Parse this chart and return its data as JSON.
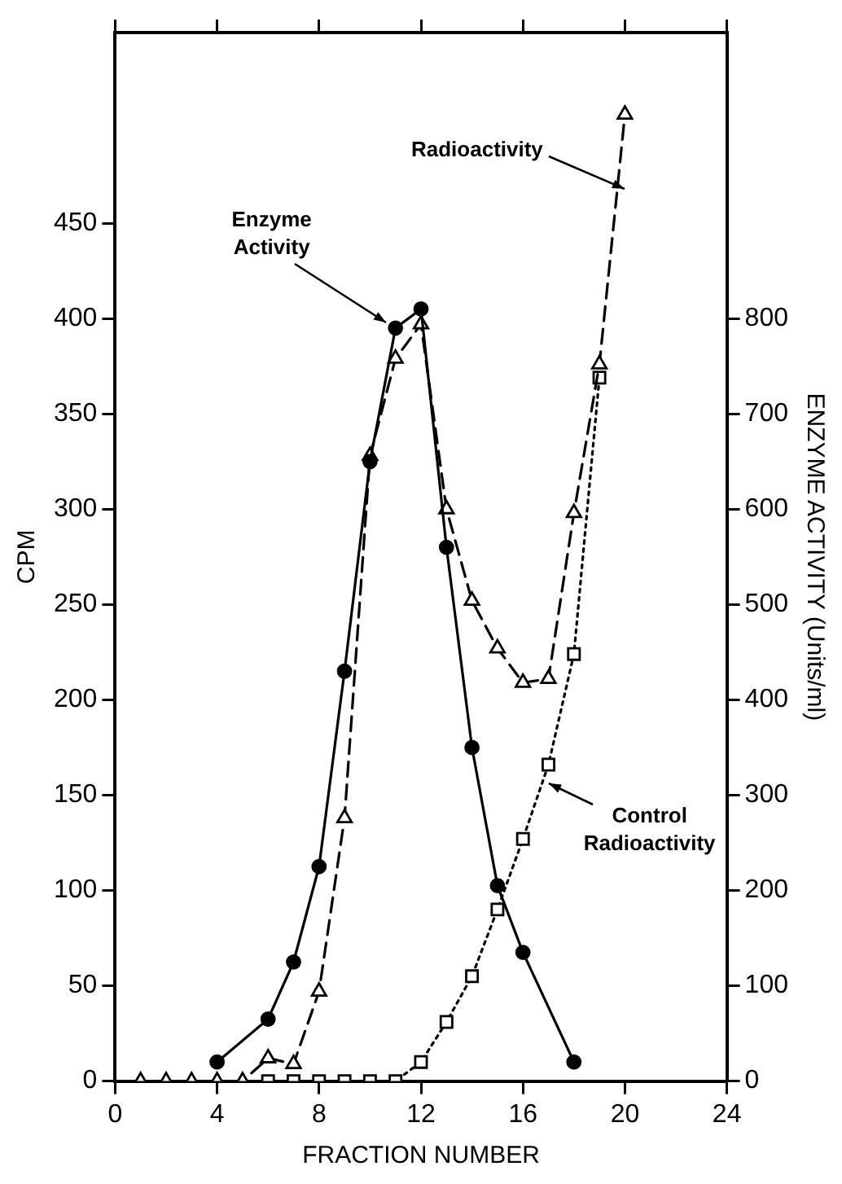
{
  "chart_data": {
    "type": "line",
    "xlabel": "FRACTION NUMBER",
    "ylabel": "CPM",
    "y2label": "ENZYME ACTIVITY (Units/ml)",
    "xlim": [
      0,
      24
    ],
    "xticks": [
      0,
      4,
      8,
      12,
      16,
      20,
      24
    ],
    "ylim": [
      0,
      550
    ],
    "yticks": [
      0,
      50,
      100,
      150,
      200,
      250,
      300,
      350,
      400,
      450
    ],
    "y2lim": [
      0,
      1100
    ],
    "y2ticks": [
      0,
      100,
      200,
      300,
      400,
      500,
      600,
      700,
      800
    ],
    "grid": false,
    "legend": false,
    "annotations": [
      {
        "text": "Enzyme Activity",
        "x": 11,
        "y": 395
      },
      {
        "text": "Radioactivity",
        "x": 19.7,
        "y": 468
      },
      {
        "text": "Control Radioactivity",
        "x": 16.75,
        "y": 156
      }
    ],
    "series": [
      {
        "color": "#000000",
        "axis": "y2",
        "marker": "circle",
        "line_style": "solid",
        "x": [
          4,
          6,
          7,
          8,
          9,
          10,
          11,
          12,
          13,
          14,
          15,
          16,
          18
        ],
        "values": [
          20,
          65,
          125,
          225,
          430,
          650,
          790,
          810,
          560,
          350,
          205,
          135,
          20
        ]
      },
      {
        "color": "#000000",
        "marker": "triangle",
        "line_style": "dashed",
        "x": [
          1,
          2,
          3,
          4,
          5,
          6,
          7,
          8,
          9,
          10,
          11,
          12,
          13,
          14,
          15,
          16,
          17,
          18,
          19,
          20
        ],
        "values": [
          0,
          0,
          0,
          0,
          0,
          12,
          9,
          47,
          138,
          328,
          379,
          397,
          300,
          252,
          227,
          209,
          211,
          298,
          376,
          507
        ]
      },
      {
        "color": "#000000",
        "marker": "square",
        "line_style": "dotted",
        "x": [
          6,
          7,
          8,
          9,
          10,
          11,
          12,
          13,
          14,
          15,
          16,
          17,
          18,
          19
        ],
        "values": [
          0,
          0,
          0,
          0,
          0,
          0,
          10,
          31,
          55,
          90,
          127,
          166,
          224,
          369
        ]
      }
    ]
  }
}
